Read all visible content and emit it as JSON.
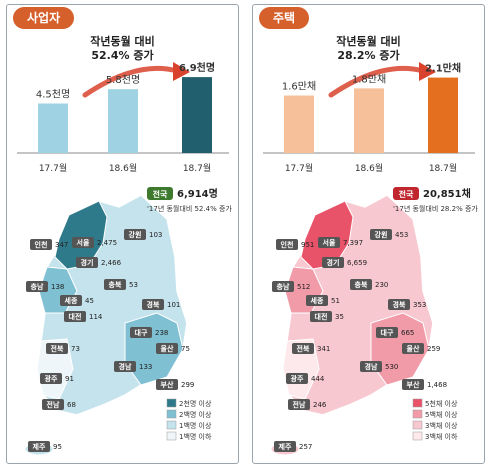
{
  "panels": [
    {
      "id": "biz",
      "tab_label": "사업자",
      "tab_color": "#d5602b",
      "headline_line1": "작년동월 대비",
      "headline_line2": "52.4% 증가",
      "legend": [
        "2천명 이상",
        "2백명 이상",
        "1백명 이상",
        "1백명 이하"
      ],
      "legend_colors": [
        "#2f7a8a",
        "#7fc0d3",
        "#c5e3ec",
        "#eef6f9"
      ],
      "nation_badge": "전국",
      "nation_value": "6,914명",
      "nation_note": "'17년 동월대비 52.4% 증가"
    },
    {
      "id": "house",
      "tab_label": "주택",
      "tab_color": "#d5602b",
      "headline_line1": "작년동월 대비",
      "headline_line2": "28.2% 증가",
      "legend": [
        "5천채 이상",
        "5백채 이상",
        "3백채 이상",
        "3백채 이하"
      ],
      "legend_colors": [
        "#e8536a",
        "#f19aa8",
        "#f8c8d0",
        "#fde9ec"
      ],
      "nation_badge": "전국",
      "nation_value": "20,851채",
      "nation_note": "'17년 동월대비 28.2% 증가"
    }
  ],
  "chart_data": [
    {
      "type": "bar",
      "categories": [
        "17.7월",
        "18.6월",
        "18.7월"
      ],
      "values": [
        4.5,
        5.8,
        6.9
      ],
      "value_labels": [
        "4.5천명",
        "5.8천명",
        "6.9천명"
      ],
      "colors": [
        "#9fd2e3",
        "#9fd2e3",
        "#215f6e"
      ],
      "ylim": [
        0,
        8
      ],
      "map_regions": [
        {
          "name": "인천",
          "value": "347"
        },
        {
          "name": "서울",
          "value": "2,475"
        },
        {
          "name": "경기",
          "value": "2,466"
        },
        {
          "name": "강원",
          "value": "103"
        },
        {
          "name": "충남",
          "value": "138"
        },
        {
          "name": "충북",
          "value": "53"
        },
        {
          "name": "세종",
          "value": "45"
        },
        {
          "name": "대전",
          "value": "114"
        },
        {
          "name": "경북",
          "value": "101"
        },
        {
          "name": "대구",
          "value": "238"
        },
        {
          "name": "전북",
          "value": "73"
        },
        {
          "name": "울산",
          "value": "75"
        },
        {
          "name": "광주",
          "value": "91"
        },
        {
          "name": "경남",
          "value": "133"
        },
        {
          "name": "부산",
          "value": "299"
        },
        {
          "name": "전남",
          "value": "68"
        },
        {
          "name": "제주",
          "value": "95"
        }
      ]
    },
    {
      "type": "bar",
      "categories": [
        "17.7월",
        "18.6월",
        "18.7월"
      ],
      "values": [
        1.6,
        1.8,
        2.1
      ],
      "value_labels": [
        "1.6만채",
        "1.8만채",
        "2.1만채"
      ],
      "colors": [
        "#f6c19a",
        "#f6c19a",
        "#e4701f"
      ],
      "ylim": [
        0,
        2.45
      ],
      "map_regions": [
        {
          "name": "인천",
          "value": "951"
        },
        {
          "name": "서울",
          "value": "7,397"
        },
        {
          "name": "경기",
          "value": "6,659"
        },
        {
          "name": "강원",
          "value": "453"
        },
        {
          "name": "충남",
          "value": "512"
        },
        {
          "name": "충북",
          "value": "230"
        },
        {
          "name": "세종",
          "value": "51"
        },
        {
          "name": "대전",
          "value": "35"
        },
        {
          "name": "경북",
          "value": "353"
        },
        {
          "name": "대구",
          "value": "665"
        },
        {
          "name": "전북",
          "value": "341"
        },
        {
          "name": "울산",
          "value": "259"
        },
        {
          "name": "광주",
          "value": "444"
        },
        {
          "name": "경남",
          "value": "530"
        },
        {
          "name": "부산",
          "value": "1,468"
        },
        {
          "name": "전남",
          "value": "246"
        },
        {
          "name": "제주",
          "value": "257"
        }
      ]
    }
  ]
}
